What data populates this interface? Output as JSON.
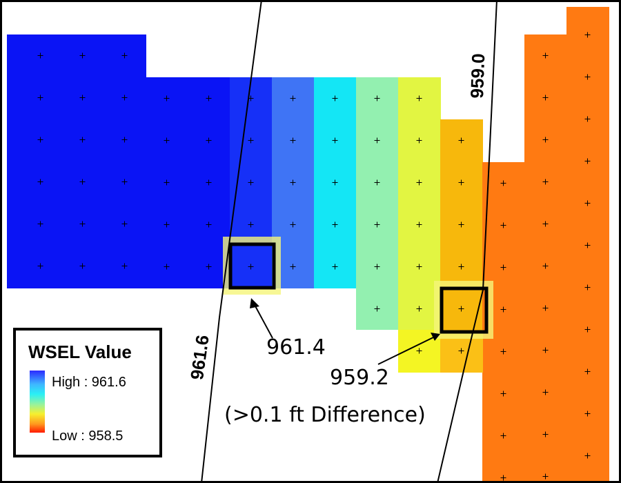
{
  "legend": {
    "title": "WSEL Value",
    "high_label": "High : 961.6",
    "low_label": "Low : 958.5"
  },
  "contours": [
    {
      "label": "961.6"
    },
    {
      "label": "959.0"
    }
  ],
  "annotations": [
    {
      "label": "961.4"
    },
    {
      "label": "959.2"
    },
    {
      "label": "(>0.1 ft Difference)"
    }
  ],
  "colors": {
    "blue": "#0a14f5",
    "orange": "#ff7a12",
    "cyan": "#14e6f5"
  }
}
